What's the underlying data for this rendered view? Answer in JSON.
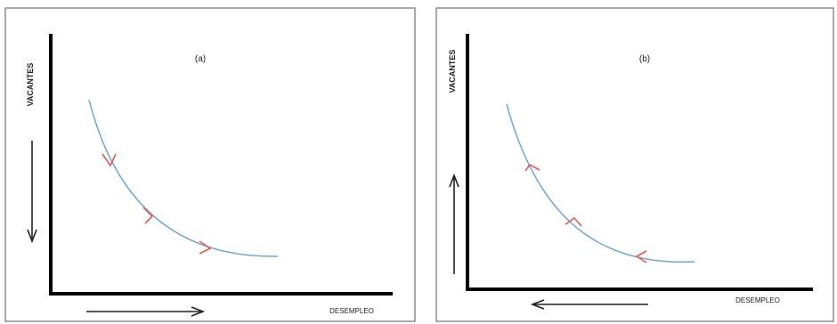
{
  "panels": [
    {
      "label": "(a)",
      "y_axis_label": "VACANTES",
      "x_axis_label": "DESEMPLEO",
      "flow": "down-right",
      "curve_color": "#6fa6d3",
      "arrow_color": "#e05a5a",
      "axis_color": "#000000"
    },
    {
      "label": "(b)",
      "y_axis_label": "VACANTES",
      "x_axis_label": "DESEMPLEO",
      "flow": "up-left",
      "curve_color": "#6fa6d3",
      "arrow_color": "#e05a5a",
      "axis_color": "#000000"
    }
  ]
}
